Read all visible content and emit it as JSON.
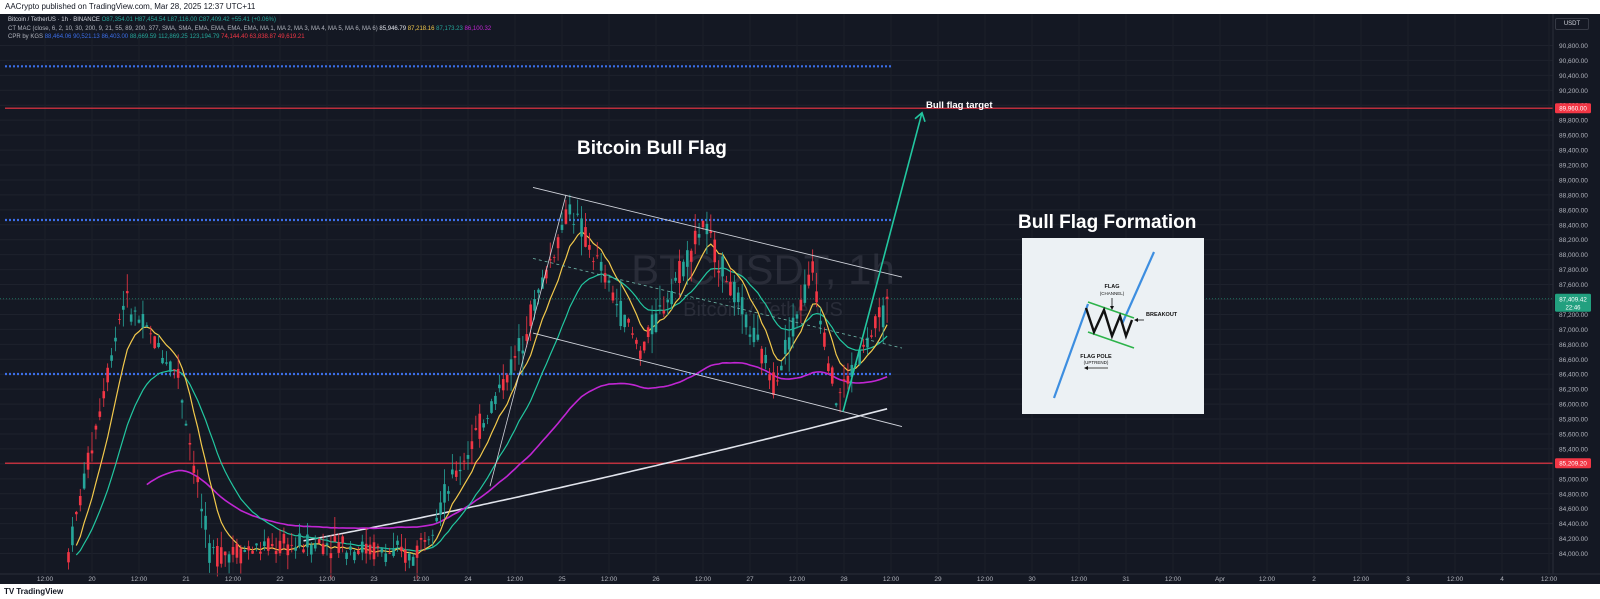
{
  "header": {
    "published": "AACrypto published on TradingView.com, Mar 28, 2025 12:37 UTC+11"
  },
  "legend": {
    "line1": {
      "symbol": "Bitcoin / TetherUS · 1h · BINANCE",
      "o": "O87,354.01",
      "h": "H87,454.54",
      "l": "L87,116.00",
      "c": "C87,409.42",
      "change": "+55.41 (+0.06%)"
    },
    "line2": {
      "label": "CT MAC (close, 6, 2, 10, 30, 200, 9, 21, 55, 89, 200, 377, SMA, SMA, EMA, EMA, EMA, EMA, MA 1, MA 2, MA 3, MA 4, MA 5, MA 6, MA 6)",
      "v1": "85,946.79",
      "v2": "87,218.16",
      "v3": "87,173.23",
      "v4": "86,100.32"
    },
    "line3": {
      "label": "CPR by KGS",
      "v1": "88,464.06",
      "v2": "90,521.13",
      "v3": "86,403.00",
      "v4": "88,669.59",
      "v5": "112,869.25",
      "v6": "123,194.79",
      "v7": "74,144.40",
      "v8": "63,838.87",
      "v9": "49,619.21"
    }
  },
  "currency_chip": "USDT",
  "annotations": {
    "title": "Bitcoin Bull Flag",
    "target": "Bull flag target",
    "watermark_symbol": "BTCUSDT, 1h",
    "watermark_name": "Bitcoin / TetherUS"
  },
  "inset": {
    "title": "Bull Flag Formation",
    "flag": "FLAG",
    "channel": "(CHANNEL)",
    "breakout": "BREAKOUT",
    "pole": "FLAG POLE",
    "uptrend": "(UPTREND)"
  },
  "price_tags": {
    "upper_red": "89,960.00",
    "current": "87,409.42",
    "countdown": "22:46",
    "lower_red": "85,209.20"
  },
  "footer": {
    "brand": "TradingView"
  },
  "colors": {
    "background": "#141823",
    "bull": "#26a69a",
    "bear": "#f23645",
    "ma_fast": "#f2c94c",
    "ma_mid": "#22c7a0",
    "ma_slow": "#c026d3",
    "ma_slowest": "#e0e3eb",
    "pivot_dotted": "#3b6ee8",
    "red_level": "#f23645"
  },
  "chart_data": {
    "type": "candlestick",
    "symbol": "BTCUSDT",
    "timeframe": "1h",
    "exchange": "BINANCE",
    "y_ticks": [
      "84,000.00",
      "84,200.00",
      "84,400.00",
      "84,600.00",
      "84,800.00",
      "85,000.00",
      "85,200.00",
      "85,400.00",
      "85,600.00",
      "85,800.00",
      "86,000.00",
      "86,200.00",
      "86,400.00",
      "86,600.00",
      "86,800.00",
      "87,000.00",
      "87,200.00",
      "87,400.00",
      "87,600.00",
      "87,800.00",
      "88,000.00",
      "88,200.00",
      "88,400.00",
      "88,600.00",
      "88,800.00",
      "89,000.00",
      "89,200.00",
      "89,400.00",
      "89,600.00",
      "89,800.00",
      "90,000.00",
      "90,200.00",
      "90,400.00",
      "90,600.00",
      "90,800.00"
    ],
    "ylim": [
      83900,
      90900
    ],
    "x_ticks": [
      "12:00",
      "20",
      "12:00",
      "21",
      "12:00",
      "22",
      "12:00",
      "23",
      "12:00",
      "24",
      "12:00",
      "25",
      "12:00",
      "26",
      "12:00",
      "27",
      "12:00",
      "28",
      "12:00",
      "29",
      "12:00",
      "30",
      "12:00",
      "31",
      "12:00",
      "Apr",
      "12:00",
      "2",
      "12:00",
      "3",
      "12:00",
      "4",
      "12:00"
    ],
    "horizontal_levels": [
      {
        "price": 89960,
        "color": "#f23645",
        "style": "solid"
      },
      {
        "price": 85209,
        "color": "#f23645",
        "style": "solid"
      },
      {
        "price": 90521,
        "color": "#3b6ee8",
        "style": "dotted"
      },
      {
        "price": 88464,
        "color": "#3b6ee8",
        "style": "dotted"
      },
      {
        "price": 86403,
        "color": "#3b6ee8",
        "style": "dotted"
      }
    ],
    "ohlc_hint": "hourly candles Mar 19 – Mar 28 2025; rally from ~84,000 to ~88,700 on Mar 24-25, then descending flag channel 88,600→86,000, last close 87,409.42",
    "key_points": [
      {
        "date": "2025-03-19 18:00",
        "price": 84000
      },
      {
        "date": "2025-03-20 08:00",
        "price": 87400
      },
      {
        "date": "2025-03-20 22:00",
        "price": 86400
      },
      {
        "date": "2025-03-21 06:00",
        "price": 84000
      },
      {
        "date": "2025-03-22 12:00",
        "price": 84150
      },
      {
        "date": "2025-03-23 10:00",
        "price": 83950
      },
      {
        "date": "2025-03-24 12:00",
        "price": 86600
      },
      {
        "date": "2025-03-25 02:00",
        "price": 88650
      },
      {
        "date": "2025-03-25 20:00",
        "price": 86700
      },
      {
        "date": "2025-03-26 12:00",
        "price": 88400
      },
      {
        "date": "2025-03-27 06:00",
        "price": 86300
      },
      {
        "date": "2025-03-27 16:00",
        "price": 87800
      },
      {
        "date": "2025-03-27 22:00",
        "price": 86050
      },
      {
        "date": "2025-03-28 12:00",
        "price": 87409.42
      }
    ],
    "flag_channel": {
      "upper": [
        {
          "date": "2025-03-24 22:00",
          "price": 88900
        },
        {
          "date": "2025-03-28 12:00",
          "price": 87700
        }
      ],
      "lower": [
        {
          "date": "2025-03-24 22:00",
          "price": 86950
        },
        {
          "date": "2025-03-28 12:00",
          "price": 85700
        }
      ]
    },
    "projection_arrow": {
      "from_price": 85900,
      "to_price": 89900
    }
  }
}
